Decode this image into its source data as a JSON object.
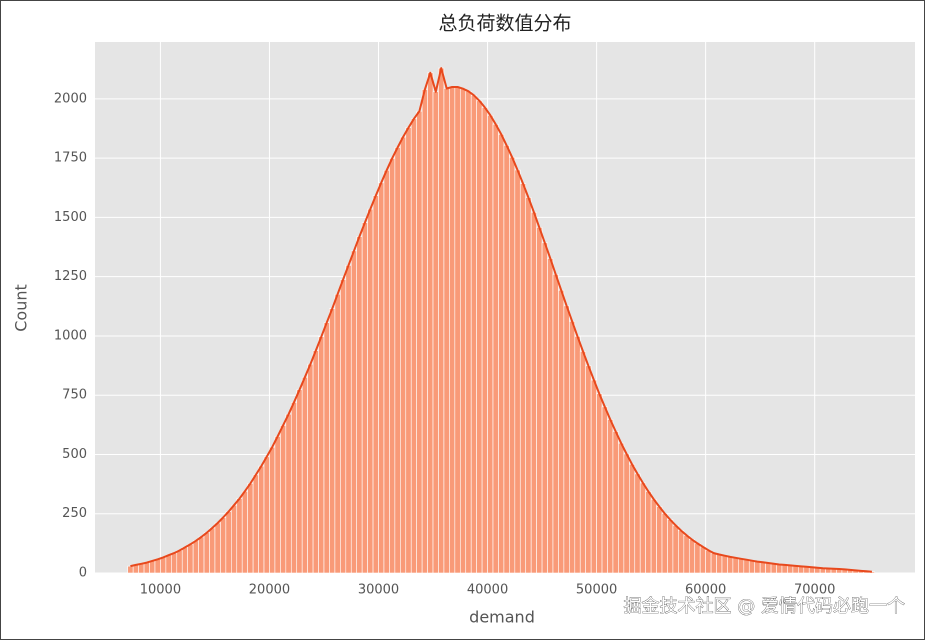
{
  "chart_data": {
    "type": "histogram",
    "title": "总负荷数值分布",
    "x_label": "demand",
    "y_label": "Count",
    "bins": [
      7000,
      7500,
      8000,
      8500,
      9000,
      9500,
      10000,
      10500,
      11000,
      11500,
      12000,
      12500,
      13000,
      13500,
      14000,
      14500,
      15000,
      15500,
      16000,
      16500,
      17000,
      17500,
      18000,
      18500,
      19000,
      19500,
      20000,
      20500,
      21000,
      21500,
      22000,
      22500,
      23000,
      23500,
      24000,
      24500,
      25000,
      25500,
      26000,
      26500,
      27000,
      27500,
      28000,
      28500,
      29000,
      29500,
      30000,
      30500,
      31000,
      31500,
      32000,
      32500,
      33000,
      33500,
      34000,
      34500,
      35000,
      35500,
      36000,
      36500,
      37000,
      37500,
      38000,
      38500,
      39000,
      39500,
      40000,
      40500,
      41000,
      41500,
      42000,
      42500,
      43000,
      43500,
      44000,
      44500,
      45000,
      45500,
      46000,
      46500,
      47000,
      47500,
      48000,
      48500,
      49000,
      49500,
      50000,
      50500,
      51000,
      51500,
      52000,
      52500,
      53000,
      53500,
      54000,
      54500,
      55000,
      55500,
      56000,
      56500,
      57000,
      57500,
      58000,
      58500,
      59000,
      59500,
      60000,
      60500,
      61000,
      61500,
      62000,
      62500,
      63000,
      63500,
      64000,
      64500,
      65000,
      65500,
      66000,
      66500,
      67000,
      67500,
      68000,
      68500,
      69000,
      69500,
      70000,
      70500,
      71000,
      71500,
      72000,
      72500,
      73000,
      73500,
      74000,
      74500,
      75000,
      75500
    ],
    "values": [
      29,
      34,
      39,
      44,
      51,
      58,
      66,
      75,
      84,
      95,
      108,
      121,
      136,
      152,
      170,
      190,
      211,
      234,
      259,
      286,
      314,
      345,
      378,
      414,
      451,
      490,
      531,
      576,
      623,
      670,
      720,
      773,
      826,
      881,
      938,
      997,
      1056,
      1115,
      1176,
      1238,
      1298,
      1359,
      1419,
      1478,
      1535,
      1592,
      1646,
      1699,
      1749,
      1795,
      1839,
      1879,
      1916,
      1948,
      2040,
      2110,
      2030,
      2130,
      2044,
      2050,
      2050,
      2043,
      2032,
      2015,
      1992,
      1964,
      1931,
      1893,
      1851,
      1804,
      1754,
      1700,
      1643,
      1584,
      1522,
      1458,
      1393,
      1327,
      1260,
      1193,
      1127,
      1062,
      998,
      935,
      874,
      814,
      756,
      701,
      648,
      597,
      548,
      502,
      459,
      418,
      380,
      344,
      311,
      280,
      251,
      225,
      201,
      179,
      159,
      141,
      125,
      110,
      96,
      84,
      78,
      73,
      68,
      64,
      60,
      56,
      52,
      48,
      45,
      42,
      39,
      36,
      34,
      32,
      30,
      28,
      26,
      24,
      22,
      20,
      19,
      18,
      17,
      15,
      13,
      11,
      9,
      7,
      5
    ],
    "bar_color": "#f99a78",
    "line_color": "#e8491d",
    "xlim": [
      4000,
      79200
    ],
    "ylim": [
      0,
      2240
    ],
    "xticks": [
      10000,
      20000,
      30000,
      40000,
      50000,
      60000,
      70000
    ],
    "yticks": [
      0,
      250,
      500,
      750,
      1000,
      1250,
      1500,
      1750,
      2000
    ],
    "grid": true,
    "watermark": "掘金技术社区 @ 爱情代码必跑一个"
  }
}
